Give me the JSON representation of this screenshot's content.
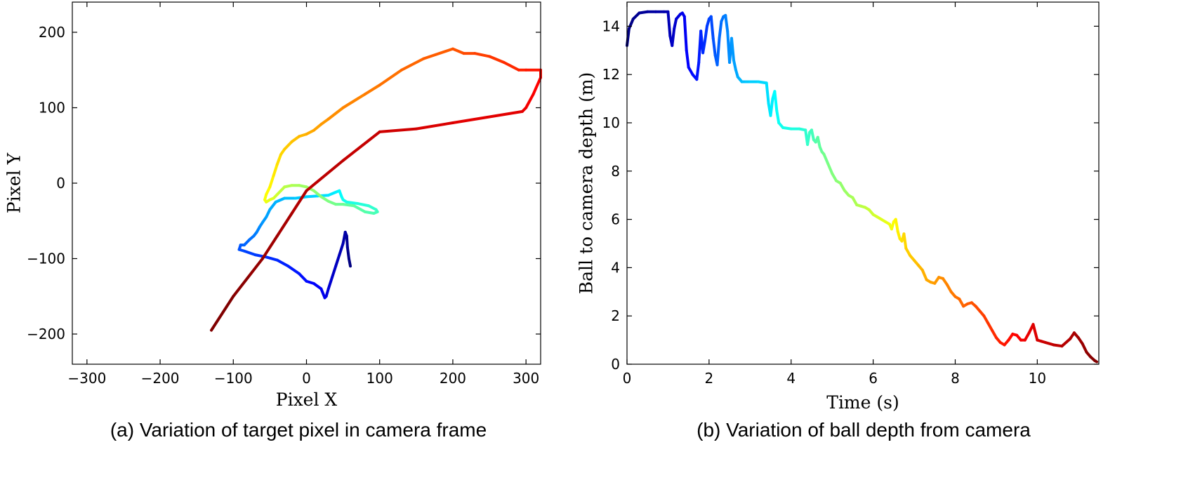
{
  "chart_data": [
    {
      "type": "line",
      "caption": "(a) Variation of target pixel in camera frame",
      "xlabel": "Pixel X",
      "ylabel": "Pixel Y",
      "xlim": [
        -320,
        320
      ],
      "ylim": [
        -240,
        240
      ],
      "xticks": [
        -300,
        -200,
        -100,
        0,
        100,
        200,
        300
      ],
      "yticks": [
        -200,
        -100,
        0,
        100,
        200
      ],
      "grid": false,
      "colormap": "jet (time-coded, dark blue to dark red)",
      "series": [
        {
          "x": [
            60,
            58,
            56,
            55,
            53,
            50,
            45,
            40,
            35,
            30,
            27,
            25,
            20,
            10,
            0,
            -10,
            -25,
            -40,
            -55,
            -70,
            -85,
            -92,
            -90,
            -85,
            -78,
            -72,
            -68,
            -64,
            -60,
            -55,
            -50,
            -42,
            -30,
            -15,
            0,
            15,
            30,
            40,
            45,
            48,
            50,
            55,
            70,
            85,
            95,
            97,
            92,
            80,
            65,
            50,
            40,
            30,
            20,
            10,
            0,
            -10,
            -20,
            -30,
            -35,
            -40,
            -45,
            -50,
            -55,
            -57,
            -55,
            -50,
            -45,
            -40,
            -35,
            -30,
            -20,
            -10,
            0,
            10,
            20,
            30,
            50,
            80,
            100,
            130,
            160,
            200,
            215,
            230,
            250,
            270,
            290,
            300,
            320,
            320,
            310,
            300,
            295,
            200,
            150,
            100,
            50,
            0,
            -20,
            -40,
            -60,
            -80,
            -100,
            -130
          ],
          "y": [
            -110,
            -100,
            -85,
            -70,
            -65,
            -80,
            -95,
            -110,
            -125,
            -140,
            -150,
            -152,
            -140,
            -133,
            -130,
            -120,
            -110,
            -102,
            -98,
            -95,
            -90,
            -88,
            -82,
            -82,
            -75,
            -70,
            -65,
            -58,
            -52,
            -45,
            -35,
            -25,
            -20,
            -20,
            -18,
            -17,
            -16,
            -12,
            -10,
            -18,
            -22,
            -25,
            -27,
            -30,
            -35,
            -38,
            -40,
            -38,
            -30,
            -28,
            -28,
            -24,
            -18,
            -10,
            -5,
            -3,
            -3,
            -5,
            -10,
            -15,
            -20,
            -22,
            -25,
            -22,
            -15,
            -5,
            10,
            25,
            38,
            45,
            55,
            62,
            65,
            70,
            78,
            85,
            100,
            118,
            130,
            150,
            165,
            178,
            172,
            172,
            168,
            160,
            150,
            150,
            150,
            140,
            118,
            100,
            95,
            80,
            72,
            68,
            30,
            -10,
            -40,
            -70,
            -100,
            -125,
            -150,
            -195
          ]
        }
      ]
    },
    {
      "type": "line",
      "caption": "(b) Variation of ball depth from camera",
      "xlabel": "Time (s)",
      "ylabel": "Ball to camera depth (m)",
      "xlim": [
        0,
        11.5
      ],
      "ylim": [
        0,
        15
      ],
      "xticks": [
        0,
        2,
        4,
        6,
        8,
        10
      ],
      "yticks": [
        0,
        2,
        4,
        6,
        8,
        10,
        12,
        14
      ],
      "grid": false,
      "colormap": "jet (time-coded, dark blue to dark red)",
      "series": [
        {
          "x": [
            0,
            0.05,
            0.15,
            0.3,
            0.5,
            0.7,
            0.9,
            1.0,
            1.05,
            1.1,
            1.15,
            1.2,
            1.25,
            1.3,
            1.35,
            1.4,
            1.45,
            1.5,
            1.6,
            1.7,
            1.75,
            1.8,
            1.85,
            1.9,
            1.95,
            2.0,
            2.05,
            2.1,
            2.15,
            2.2,
            2.25,
            2.3,
            2.35,
            2.4,
            2.45,
            2.5,
            2.55,
            2.6,
            2.65,
            2.7,
            2.75,
            2.8,
            2.9,
            3.0,
            3.2,
            3.4,
            3.45,
            3.5,
            3.55,
            3.6,
            3.65,
            3.7,
            3.8,
            4.0,
            4.2,
            4.35,
            4.4,
            4.45,
            4.5,
            4.55,
            4.6,
            4.65,
            4.7,
            4.75,
            4.8,
            4.9,
            5.0,
            5.1,
            5.2,
            5.3,
            5.4,
            5.5,
            5.6,
            5.7,
            5.8,
            5.9,
            6.0,
            6.1,
            6.2,
            6.3,
            6.4,
            6.45,
            6.5,
            6.55,
            6.6,
            6.65,
            6.7,
            6.75,
            6.8,
            6.9,
            7.0,
            7.1,
            7.2,
            7.3,
            7.4,
            7.5,
            7.6,
            7.7,
            7.8,
            7.9,
            8.0,
            8.1,
            8.2,
            8.3,
            8.4,
            8.5,
            8.6,
            8.7,
            8.8,
            8.9,
            9.0,
            9.1,
            9.2,
            9.3,
            9.4,
            9.5,
            9.6,
            9.7,
            9.8,
            9.9,
            10.0,
            10.1,
            10.2,
            10.4,
            10.6,
            10.8,
            10.9,
            11.0,
            11.1,
            11.2,
            11.3,
            11.4,
            11.45
          ],
          "y": [
            13.2,
            13.9,
            14.3,
            14.55,
            14.6,
            14.6,
            14.6,
            14.6,
            13.6,
            13.2,
            13.9,
            14.3,
            14.4,
            14.5,
            14.55,
            14.4,
            13.0,
            12.3,
            12.0,
            11.8,
            12.5,
            13.8,
            12.9,
            13.4,
            14.0,
            14.3,
            14.4,
            13.5,
            12.8,
            12.4,
            13.5,
            14.2,
            14.4,
            14.45,
            13.8,
            12.5,
            13.5,
            12.6,
            12.2,
            11.9,
            11.8,
            11.7,
            11.7,
            11.7,
            11.7,
            11.65,
            10.8,
            10.3,
            11.0,
            11.3,
            10.5,
            10.0,
            9.8,
            9.75,
            9.75,
            9.7,
            9.1,
            9.6,
            9.7,
            9.3,
            9.2,
            9.4,
            9.0,
            8.8,
            8.7,
            8.3,
            7.9,
            7.6,
            7.5,
            7.2,
            7.0,
            6.9,
            6.6,
            6.55,
            6.5,
            6.4,
            6.2,
            6.1,
            6.0,
            5.9,
            5.8,
            5.6,
            5.9,
            6.0,
            5.5,
            5.2,
            5.1,
            5.4,
            4.8,
            4.5,
            4.3,
            4.1,
            3.9,
            3.5,
            3.4,
            3.35,
            3.6,
            3.55,
            3.3,
            3.0,
            2.8,
            2.7,
            2.4,
            2.5,
            2.55,
            2.4,
            2.2,
            2.0,
            1.7,
            1.4,
            1.1,
            0.9,
            0.8,
            1.0,
            1.25,
            1.2,
            1.0,
            1.0,
            1.3,
            1.65,
            1.0,
            0.95,
            0.9,
            0.8,
            0.75,
            1.05,
            1.3,
            1.1,
            0.85,
            0.5,
            0.3,
            0.15,
            0.1
          ]
        }
      ]
    }
  ]
}
